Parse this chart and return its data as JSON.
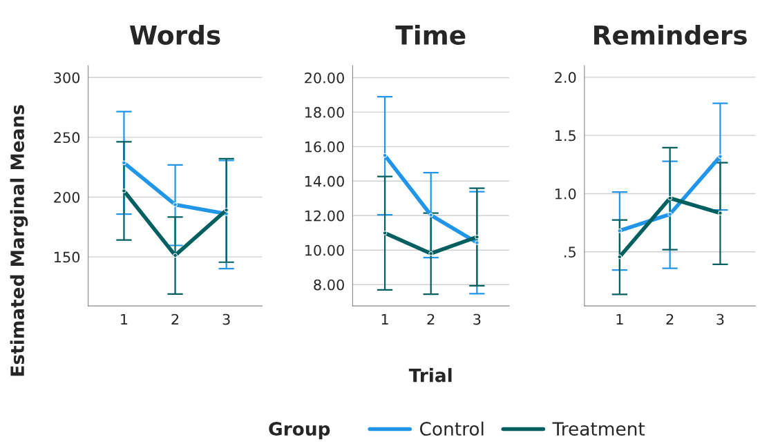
{
  "chart_data": [
    {
      "type": "line",
      "title": "Words",
      "ylabel": "Estimated Marginal Means",
      "legend_title": "Group",
      "legend": "bottom",
      "categories": [
        "1",
        "2",
        "3"
      ],
      "ylim": [
        109,
        310
      ],
      "yticks": [
        150,
        200,
        250,
        300
      ],
      "grid": "y",
      "marker": "circle",
      "line_style": "solid",
      "series": [
        {
          "name": "Control",
          "color": "#2196e8",
          "values": [
            228.7,
            193.7,
            186
          ],
          "errors": [
            [
              185.8,
              271.5
            ],
            [
              159.6,
              226.9
            ],
            [
              140.2,
              230.6
            ]
          ]
        },
        {
          "name": "Treatment",
          "color": "#005f5f",
          "values": [
            205.2,
            151.3,
            189.2
          ],
          "errors": [
            [
              164.2,
              246.3
            ],
            [
              119,
              183.3
            ],
            [
              145.6,
              232.1
            ]
          ]
        }
      ]
    },
    {
      "type": "line",
      "title": "Time",
      "xlabel": "Trial",
      "categories": [
        "1",
        "2",
        "3"
      ],
      "ylim": [
        6.76,
        20.7
      ],
      "yticks": [
        {
          "value": 8,
          "label": "8.00"
        },
        {
          "value": 10,
          "label": "10.00"
        },
        {
          "value": 12,
          "label": "12.00"
        },
        {
          "value": 14,
          "label": "14.00"
        },
        {
          "value": 16,
          "label": "16.00"
        },
        {
          "value": 18,
          "label": "18.00"
        },
        {
          "value": 20,
          "label": "20.00"
        }
      ],
      "grid": "y",
      "marker": "circle",
      "line_style": "solid",
      "series": [
        {
          "color": "#2196e8",
          "values": [
            15.49,
            12.03,
            10.43
          ],
          "errors": [
            [
              12.05,
              18.89
            ],
            [
              9.56,
              14.49
            ],
            [
              7.47,
              13.39
            ]
          ]
        },
        {
          "color": "#005f5f",
          "values": [
            10.99,
            9.8,
            10.76
          ],
          "errors": [
            [
              7.69,
              14.27
            ],
            [
              7.44,
              12.15
            ],
            [
              7.93,
              13.59
            ]
          ]
        }
      ]
    },
    {
      "type": "line",
      "title": "Reminders",
      "categories": [
        "1",
        "2",
        "3"
      ],
      "ylim": [
        0.035,
        2.1
      ],
      "yticks": [
        {
          "value": 0.5,
          "label": ".5"
        },
        {
          "value": 1,
          "label": "1.0"
        },
        {
          "value": 1.5,
          "label": "1.5"
        },
        {
          "value": 2,
          "label": "2.0"
        }
      ],
      "grid": "y",
      "marker": "circle",
      "line_style": "solid",
      "series": [
        {
          "color": "#2196e8",
          "values": [
            0.681,
            0.823,
            1.319
          ],
          "errors": [
            [
              0.344,
              1.014
            ],
            [
              0.358,
              1.278
            ],
            [
              0.86,
              1.776
            ]
          ]
        },
        {
          "color": "#005f5f",
          "values": [
            0.457,
            0.961,
            0.833
          ],
          "errors": [
            [
              0.135,
              0.774
            ],
            [
              0.518,
              1.395
            ],
            [
              0.392,
              1.266
            ]
          ]
        }
      ]
    }
  ]
}
